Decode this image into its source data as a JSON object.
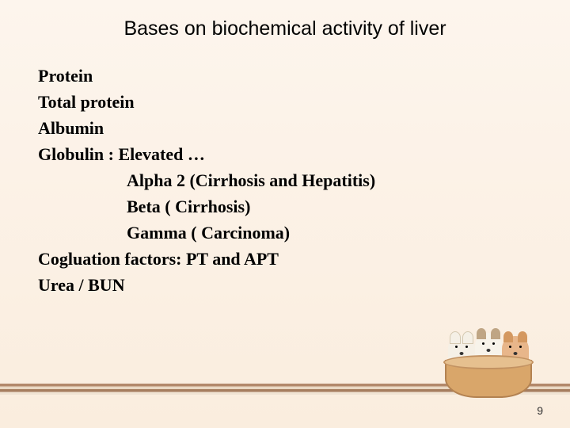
{
  "title": "Bases on biochemical activity of liver",
  "lines": {
    "l1": "Protein",
    "l2": "Total protein",
    "l3": "Albumin",
    "l4": "Globulin : Elevated …",
    "l5": "Alpha 2 (Cirrhosis and Hepatitis)",
    "l6": "Beta ( Cirrhosis)",
    "l7": "Gamma ( Carcinoma)",
    "l8": "Cogluation factors: PT and APT",
    "l9": "Urea / BUN"
  },
  "page_number": "9",
  "colors": {
    "bg_top": "#fdf5ed",
    "bg_bottom": "#faedde",
    "text": "#000000"
  },
  "typography": {
    "title_font": "Arial",
    "title_size_pt": 19,
    "body_font": "Times New Roman",
    "body_size_pt": 17,
    "body_weight": "bold"
  }
}
